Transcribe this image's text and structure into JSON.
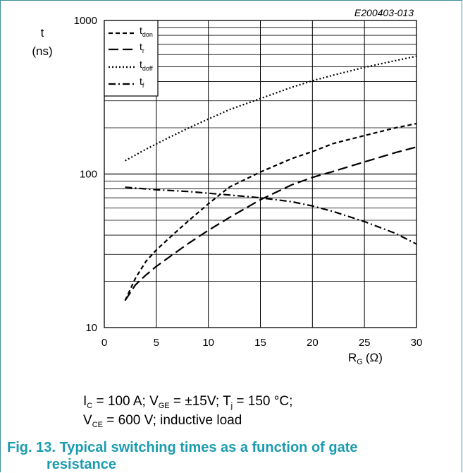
{
  "figure_id": "E200403-013",
  "colors": {
    "accent": "#1a9bb0",
    "frame": "#3a8f9c",
    "line": "#000000"
  },
  "chart_data": {
    "type": "line",
    "yscale": "log",
    "ylim": [
      10,
      1000
    ],
    "xlim": [
      0,
      30
    ],
    "ylabel_top": "t",
    "ylabel_unit": "(ns)",
    "xlabel_main": "R",
    "xlabel_sub": "G",
    "xlabel_unit": "(Ω)",
    "x_ticks": [
      "0",
      "5",
      "10",
      "15",
      "20",
      "25",
      "30"
    ],
    "y_ticks": [
      "10",
      "100",
      "1000"
    ],
    "grid": true,
    "legend_position": "top-left",
    "series": [
      {
        "name": "t_don",
        "label_main": "t",
        "label_sub": "don",
        "dash": "6,4",
        "x": [
          2,
          3,
          4,
          5,
          6,
          8,
          10,
          12,
          15,
          18,
          20,
          22,
          25,
          28,
          30
        ],
        "y": [
          15,
          21,
          27,
          32,
          37,
          49,
          64,
          82,
          103,
          126,
          140,
          158,
          178,
          200,
          213
        ]
      },
      {
        "name": "t_r",
        "label_main": "t",
        "label_sub": "r",
        "dash": "14,6",
        "x": [
          2,
          3,
          4,
          5,
          6,
          8,
          10,
          12,
          15,
          18,
          20,
          22,
          25,
          28,
          30
        ],
        "y": [
          15,
          19,
          22,
          25,
          28,
          35,
          43,
          52,
          68,
          85,
          95,
          104,
          120,
          138,
          150
        ]
      },
      {
        "name": "t_doff",
        "label_main": "t",
        "label_sub": "doff",
        "dash": "2,3",
        "x": [
          2,
          4,
          6,
          8,
          10,
          12,
          15,
          18,
          20,
          22,
          25,
          28,
          30
        ],
        "y": [
          122,
          145,
          170,
          198,
          228,
          262,
          310,
          367,
          405,
          440,
          495,
          548,
          585
        ]
      },
      {
        "name": "t_f",
        "label_main": "t",
        "label_sub": "f",
        "dash": "10,4,2,4",
        "x": [
          2,
          5,
          8,
          10,
          12,
          15,
          18,
          20,
          22,
          25,
          28,
          30
        ],
        "y": [
          82,
          79,
          77,
          75,
          73,
          70,
          66,
          62,
          57,
          49,
          41,
          35
        ]
      }
    ]
  },
  "conditions": {
    "line1": {
      "ic_main": "I",
      "ic_sub": "C",
      "ic_val": " = 100 A; ",
      "vge_main": "V",
      "vge_sub": "GE",
      "vge_val": " = ±15V; ",
      "tj_main": "T",
      "tj_sub": "j",
      "tj_val": " = 150 °C;"
    },
    "line2": {
      "vce_main": "V",
      "vce_sub": "CE",
      "vce_val": " = 600 V; inductive load"
    }
  },
  "caption": {
    "line1": "Fig. 13. Typical switching times as a function of gate",
    "line2": "resistance"
  }
}
